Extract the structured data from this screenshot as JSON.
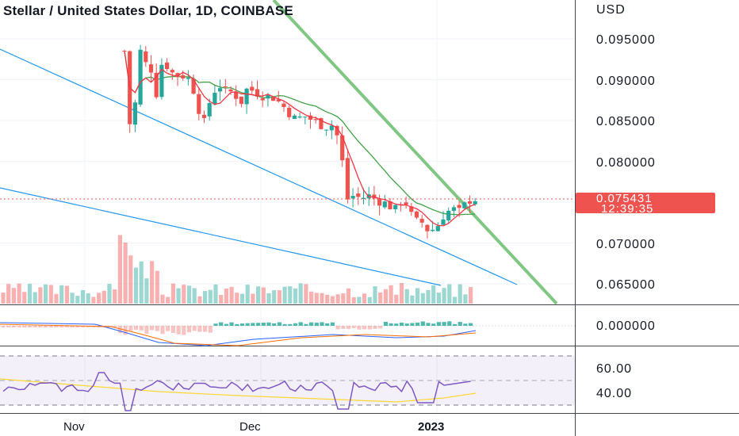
{
  "header": {
    "title": "Stellar / United States Dollar, 1D, COINBASE"
  },
  "price_axis": {
    "currency": "USD",
    "ticks": [
      "0.095000",
      "0.090000",
      "0.085000",
      "0.080000",
      "0.070000",
      "0.065000"
    ],
    "current_price": "0.075431",
    "countdown": "12:39:35"
  },
  "macd_axis": {
    "ticks": [
      "0.000000"
    ]
  },
  "rsi_axis": {
    "ticks": [
      "60.00",
      "40.00"
    ]
  },
  "time_axis": {
    "labels": [
      "Nov",
      "Dec",
      "2023"
    ]
  },
  "colors": {
    "up": "#26a69a",
    "down": "#ef5350",
    "ma_fast": "#f23645",
    "ma_slow": "#43a047",
    "trendline_blue": "#2196f3",
    "trendline_green": "#81c784",
    "rsi": "#7e57c2",
    "rsi_ma": "#fdd835",
    "macd": "#2962ff",
    "signal": "#ff6d00"
  },
  "chart_data": {
    "type": "candlestick",
    "symbol": "Stellar / United States Dollar",
    "interval": "1D",
    "exchange": "COINBASE",
    "y_range": [
      0.062,
      0.1
    ]
  }
}
